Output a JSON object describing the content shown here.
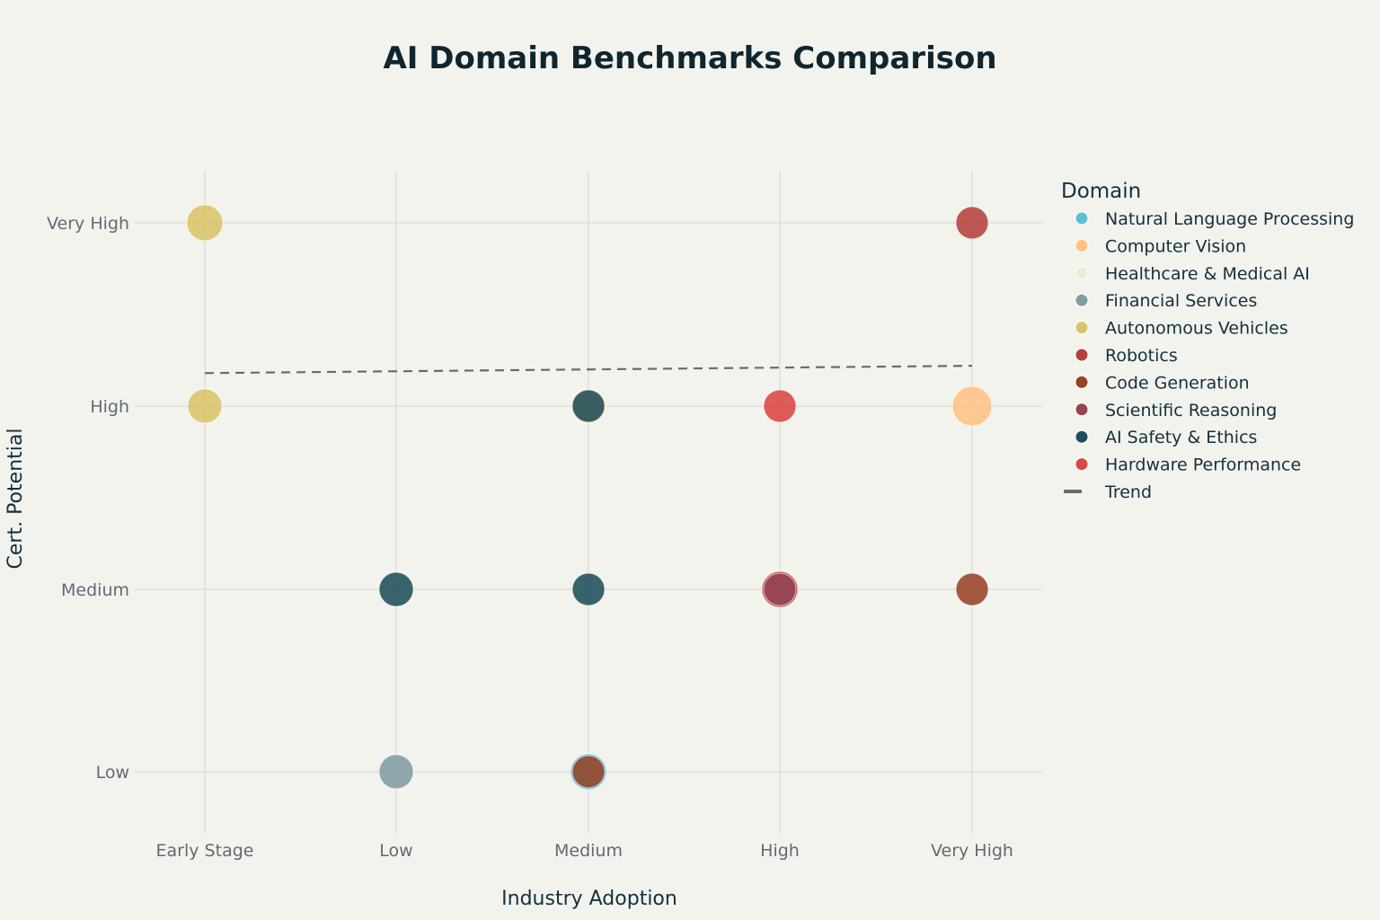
{
  "chart_data": {
    "type": "scatter",
    "title": "AI Domain Benchmarks Comparison",
    "xlabel": "Industry Adoption",
    "ylabel": "Cert. Potential",
    "x_categories": [
      "Early Stage",
      "Low",
      "Medium",
      "High",
      "Very High"
    ],
    "y_categories": [
      "Low",
      "Medium",
      "High",
      "Very High"
    ],
    "grid": true,
    "legend": {
      "title": "Domain",
      "placement": "right"
    },
    "series": [
      {
        "name": "Natural Language Processing",
        "color": "#5bc0d6",
        "points": [
          {
            "x": "Medium",
            "y": "Low"
          }
        ]
      },
      {
        "name": "Computer Vision",
        "color": "#ffc185",
        "points": [
          {
            "x": "Very High",
            "y": "High"
          },
          {
            "x": "Medium",
            "y": "High"
          }
        ]
      },
      {
        "name": "Healthcare & Medical AI",
        "color": "#ecebd5",
        "points": [
          {
            "x": "High",
            "y": "Medium"
          }
        ]
      },
      {
        "name": "Financial Services",
        "color": "#7e9ca3",
        "points": [
          {
            "x": "Low",
            "y": "Low"
          }
        ]
      },
      {
        "name": "Autonomous Vehicles",
        "color": "#d9c36a",
        "points": [
          {
            "x": "Early Stage",
            "y": "Very High"
          },
          {
            "x": "Early Stage",
            "y": "High"
          }
        ]
      },
      {
        "name": "Robotics",
        "color": "#b4413c",
        "points": [
          {
            "x": "High",
            "y": "Medium"
          },
          {
            "x": "Very High",
            "y": "Very High"
          }
        ]
      },
      {
        "name": "Code Generation",
        "color": "#964325",
        "points": [
          {
            "x": "Very High",
            "y": "Medium"
          },
          {
            "x": "Medium",
            "y": "Low"
          }
        ]
      },
      {
        "name": "Scientific Reasoning",
        "color": "#944454",
        "points": [
          {
            "x": "High",
            "y": "Medium"
          }
        ]
      },
      {
        "name": "AI Safety & Ethics",
        "color": "#1e4f5a",
        "points": [
          {
            "x": "Low",
            "y": "Medium"
          },
          {
            "x": "Medium",
            "y": "High"
          },
          {
            "x": "Medium",
            "y": "Medium"
          }
        ]
      },
      {
        "name": "Hardware Performance",
        "color": "#db4545",
        "points": [
          {
            "x": "High",
            "y": "High"
          }
        ]
      }
    ],
    "trend": {
      "name": "Trend",
      "color": "#6b6b6b",
      "start": {
        "x": "Early Stage",
        "y": 2.18
      },
      "end": {
        "x": "Very High",
        "y": 2.22
      }
    }
  }
}
